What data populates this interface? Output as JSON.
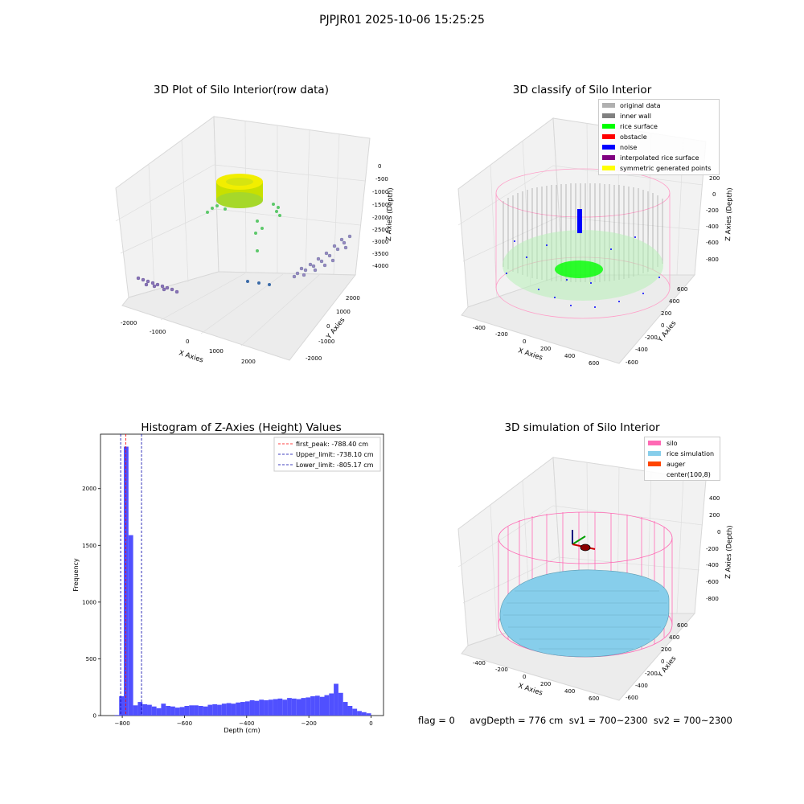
{
  "suptitle": "PJPJR01 2025-10-06 15:25:25",
  "footer": "flag = 0     avgDepth = 776 cm  sv1 = 700~2300  sv2 = 700~2300",
  "colors": {
    "original": "#b0b0b0",
    "inner_wall": "#808080",
    "rice_surface": "#00ff00",
    "obstacle": "#ff0000",
    "noise": "#0000ff",
    "interpolated": "#800080",
    "symmetric": "#ffff00",
    "silo": "#ff69b4",
    "rice_sim": "#87ceeb",
    "auger": "#ff4500",
    "hist_bar": "#5050ff",
    "first_peak": "#ff0000",
    "limits": "#0000aa"
  },
  "chart_data": [
    {
      "type": "scatter",
      "title": "3D Plot of Silo Interior(row data)",
      "xlabel": "X Axies",
      "ylabel": "Y Axies",
      "zlabel": "Z Axies (Depth)",
      "x_ticks": [
        "-2000",
        "-1000",
        "0",
        "1000",
        "2000"
      ],
      "y_ticks": [
        "-2000",
        "-1000",
        "0",
        "1000",
        "2000"
      ],
      "z_ticks": [
        "0",
        "-500",
        "-1000",
        "-1500",
        "-2000",
        "-2500",
        "-3000",
        "-3500",
        "-4000"
      ]
    },
    {
      "type": "scatter",
      "title": "3D classify of Silo Interior",
      "xlabel": "X Axies",
      "ylabel": "Y Axies",
      "zlabel": "Z Axies (Depth)",
      "x_ticks": [
        "-400",
        "-200",
        "0",
        "200",
        "400",
        "600"
      ],
      "y_ticks": [
        "-600",
        "-400",
        "-200",
        "0",
        "200",
        "400",
        "600"
      ],
      "z_ticks": [
        "200",
        "0",
        "-200",
        "-400",
        "-600",
        "-800"
      ],
      "legend": [
        "original data",
        "inner wall",
        "rice surface",
        "obstacle",
        "noise",
        "interpolated rice surface",
        "symmetric generated points"
      ],
      "legend_placement": "upper right"
    },
    {
      "type": "bar",
      "title": "Histogram of Z-Axies (Height) Values",
      "xlabel": "Depth (cm)",
      "ylabel": "Frequency",
      "xlim": [
        -870,
        40
      ],
      "ylim": [
        0,
        2480
      ],
      "x_ticks": [
        -800,
        -600,
        -400,
        -200,
        0
      ],
      "y_ticks": [
        0,
        500,
        1000,
        1500,
        2000
      ],
      "bin_width": 15,
      "bin_starts": [
        -825,
        -810,
        -795,
        -780,
        -765,
        -750,
        -735,
        -720,
        -705,
        -690,
        -675,
        -660,
        -645,
        -630,
        -615,
        -600,
        -585,
        -570,
        -555,
        -540,
        -525,
        -510,
        -495,
        -480,
        -465,
        -450,
        -435,
        -420,
        -405,
        -390,
        -375,
        -360,
        -345,
        -330,
        -315,
        -300,
        -285,
        -270,
        -255,
        -240,
        -225,
        -210,
        -195,
        -180,
        -165,
        -150,
        -135,
        -120,
        -105,
        -90,
        -75,
        -60,
        -45,
        -30,
        -15
      ],
      "values": [
        5,
        170,
        2370,
        1590,
        90,
        120,
        100,
        95,
        80,
        65,
        105,
        85,
        80,
        70,
        75,
        85,
        90,
        90,
        85,
        80,
        95,
        100,
        95,
        105,
        110,
        105,
        115,
        120,
        125,
        135,
        130,
        140,
        135,
        140,
        145,
        150,
        140,
        155,
        150,
        145,
        155,
        160,
        170,
        175,
        165,
        180,
        195,
        280,
        200,
        120,
        85,
        60,
        40,
        30,
        20
      ],
      "lines": [
        {
          "name": "first_peak: -788.40 cm",
          "x": -788.4,
          "color": "#ff0000"
        },
        {
          "name": "Upper_limit: -738.10 cm",
          "x": -738.1,
          "color": "#0000aa"
        },
        {
          "name": "Lower_limit: -805.17 cm",
          "x": -805.17,
          "color": "#0000aa"
        }
      ],
      "legend_placement": "upper right"
    },
    {
      "type": "surface",
      "title": "3D simulation of Silo Interior",
      "xlabel": "X Axies",
      "ylabel": "Y Axies",
      "zlabel": "Z Axies (Depth)",
      "x_ticks": [
        "-400",
        "-200",
        "0",
        "200",
        "400",
        "600"
      ],
      "y_ticks": [
        "-600",
        "-400",
        "-200",
        "0",
        "200",
        "400",
        "600"
      ],
      "z_ticks": [
        "400",
        "200",
        "0",
        "-200",
        "-400",
        "-600",
        "-800"
      ],
      "legend": [
        "silo",
        "rice simulation",
        "auger",
        "center(100,8)"
      ],
      "legend_placement": "upper right"
    }
  ]
}
